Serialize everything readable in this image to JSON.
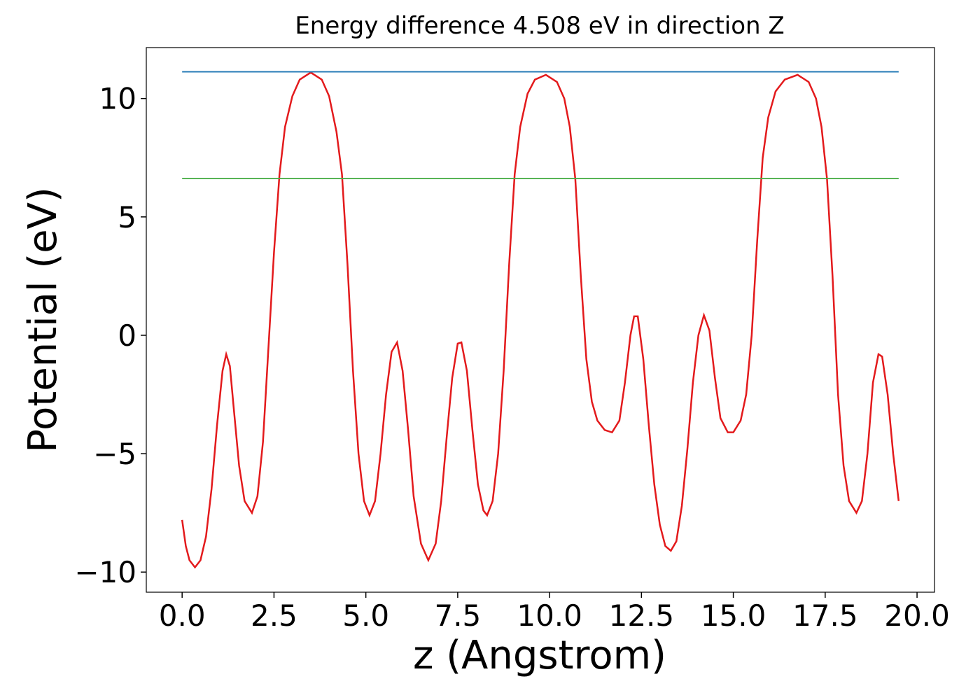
{
  "chart_data": {
    "type": "line",
    "title": "Energy difference 4.508 eV in direction Z",
    "xlabel": "z (Angstrom)",
    "ylabel": "Potential (eV)",
    "xlim": [
      -0.975,
      20.475
    ],
    "xticks": [
      {
        "value": 0,
        "label": "0.0"
      },
      2.5,
      {
        "value": 5,
        "label": "5.0"
      },
      7.5,
      {
        "value": 10,
        "label": "10.0"
      },
      12.5,
      {
        "value": 15,
        "label": "15.0"
      },
      17.5,
      {
        "value": 20,
        "label": "20.0"
      }
    ],
    "ylim": [
      -10.85,
      12.15
    ],
    "yticks": [
      {
        "value": -10,
        "label": "−10"
      },
      {
        "value": -5,
        "label": "−5"
      },
      0,
      5,
      10
    ],
    "grid": false,
    "series": [
      {
        "color": "#e31a1c",
        "x": [
          0,
          0.1,
          0.2,
          0.35,
          0.5,
          0.65,
          0.8,
          0.95,
          1.1,
          1.2,
          1.3,
          1.4,
          1.55,
          1.7,
          1.9,
          2.05,
          2.2,
          2.35,
          2.5,
          2.65,
          2.8,
          3.0,
          3.2,
          3.5,
          3.8,
          4.0,
          4.2,
          4.35,
          4.5,
          4.65,
          4.8,
          4.95,
          5.1,
          5.25,
          5.4,
          5.55,
          5.7,
          5.85,
          6.0,
          6.15,
          6.3,
          6.5,
          6.7,
          6.9,
          7.05,
          7.2,
          7.35,
          7.5,
          7.6,
          7.75,
          7.9,
          8.05,
          8.2,
          8.3,
          8.45,
          8.6,
          8.75,
          8.9,
          9.05,
          9.2,
          9.4,
          9.6,
          9.9,
          10.2,
          10.4,
          10.55,
          10.7,
          10.85,
          11.0,
          11.15,
          11.3,
          11.5,
          11.7,
          11.9,
          12.05,
          12.2,
          12.3,
          12.4,
          12.55,
          12.7,
          12.85,
          13.0,
          13.15,
          13.3,
          13.45,
          13.6,
          13.75,
          13.9,
          14.05,
          14.2,
          14.35,
          14.5,
          14.65,
          14.85,
          15.0,
          15.2,
          15.35,
          15.5,
          15.65,
          15.8,
          15.95,
          16.15,
          16.4,
          16.75,
          17.05,
          17.25,
          17.4,
          17.55,
          17.7,
          17.85,
          18.0,
          18.15,
          18.35,
          18.5,
          18.65,
          18.8,
          18.95,
          19.05,
          19.2,
          19.35,
          19.5
        ],
        "values": [
          -7.8,
          -8.9,
          -9.5,
          -9.8,
          -9.5,
          -8.5,
          -6.5,
          -3.8,
          -1.5,
          -0.8,
          -1.3,
          -3.0,
          -5.5,
          -7.0,
          -7.5,
          -6.8,
          -4.5,
          -0.5,
          3.5,
          6.8,
          8.8,
          10.1,
          10.8,
          11.1,
          10.8,
          10.1,
          8.6,
          6.8,
          3.0,
          -1.5,
          -5.0,
          -7.0,
          -7.6,
          -7.0,
          -5.0,
          -2.5,
          -0.7,
          -0.3,
          -1.5,
          -4.0,
          -6.8,
          -8.8,
          -9.5,
          -8.8,
          -7.0,
          -4.3,
          -1.8,
          -0.35,
          -0.3,
          -1.5,
          -4.0,
          -6.3,
          -7.4,
          -7.6,
          -7.0,
          -5.0,
          -1.5,
          3.0,
          6.8,
          8.8,
          10.2,
          10.8,
          11.0,
          10.7,
          10.0,
          8.8,
          6.6,
          2.5,
          -1.0,
          -2.8,
          -3.6,
          -4.0,
          -4.1,
          -3.6,
          -2.0,
          0.0,
          0.8,
          0.8,
          -1.0,
          -3.8,
          -6.3,
          -8.0,
          -8.9,
          -9.1,
          -8.7,
          -7.2,
          -4.8,
          -2.0,
          0.0,
          0.85,
          0.2,
          -1.8,
          -3.5,
          -4.1,
          -4.1,
          -3.6,
          -2.5,
          0.0,
          4.0,
          7.5,
          9.2,
          10.3,
          10.8,
          11.0,
          10.7,
          10.0,
          8.8,
          6.6,
          2.5,
          -2.5,
          -5.5,
          -7.0,
          -7.5,
          -7.0,
          -5.0,
          -2.0,
          -0.8,
          -0.9,
          -2.5,
          -5.0,
          -7.0
        ]
      },
      {
        "color": "#1f77b4",
        "x": [
          0,
          19.5
        ],
        "values": [
          11.128,
          11.128
        ]
      },
      {
        "color": "#4daf4a",
        "x": [
          0,
          19.5
        ],
        "values": [
          6.62,
          6.62
        ]
      }
    ]
  }
}
